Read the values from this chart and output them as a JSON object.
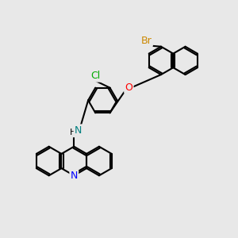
{
  "background_color": "#e8e8e8",
  "atom_colors": {
    "C": "#000000",
    "N_blue": "#0000ff",
    "N_nh": "#008080",
    "O": "#ff0000",
    "Cl": "#00aa00",
    "Br": "#cc8800",
    "H": "#000000"
  },
  "bond_color": "#000000",
  "bond_width": 1.5,
  "font_size": 9,
  "figsize": [
    3.0,
    3.0
  ],
  "dpi": 100
}
